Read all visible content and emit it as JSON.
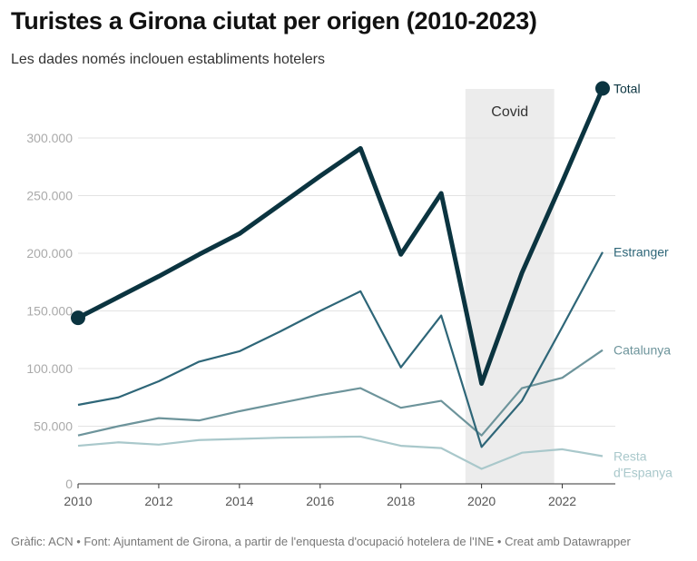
{
  "title": "Turistes a Girona ciutat per origen (2010-2023)",
  "subtitle": "Les dades només inclouen establiments hotelers",
  "footer": "Gràfic: ACN • Font: Ajuntament de Girona, a partir de l'enquesta d'ocupació hotelera de l'INE • Creat amb Datawrapper",
  "chart_data": {
    "type": "line",
    "x": [
      2010,
      2011,
      2012,
      2013,
      2014,
      2015,
      2016,
      2017,
      2018,
      2019,
      2020,
      2021,
      2022,
      2023
    ],
    "xlim": [
      2010,
      2023
    ],
    "ylim": [
      0,
      340000
    ],
    "x_ticks": [
      "2010",
      "2012",
      "2014",
      "2016",
      "2018",
      "2020",
      "2022"
    ],
    "y_ticks": [
      {
        "v": 0,
        "label": "0"
      },
      {
        "v": 50000,
        "label": "50.000"
      },
      {
        "v": 100000,
        "label": "100.000"
      },
      {
        "v": 150000,
        "label": "150.000"
      },
      {
        "v": 200000,
        "label": "200.000"
      },
      {
        "v": 250000,
        "label": "250.000"
      },
      {
        "v": 300000,
        "label": "300.000"
      }
    ],
    "grid": true,
    "annotation": {
      "label": "Covid",
      "from": 2019.6,
      "to": 2021.8,
      "color": "#ececec"
    },
    "series": [
      {
        "name": "Resta d'Espanya",
        "label_lines": [
          "Resta",
          "d'Espanya"
        ],
        "color": "#a9c8cb",
        "values": [
          33000,
          36000,
          34000,
          38000,
          39000,
          40000,
          40500,
          41000,
          33000,
          31000,
          13000,
          27000,
          30000,
          24000
        ]
      },
      {
        "name": "Catalunya",
        "label_lines": [
          "Catalunya"
        ],
        "color": "#6d949b",
        "values": [
          42000,
          50000,
          57000,
          55000,
          63000,
          70000,
          77000,
          83000,
          66000,
          72000,
          42000,
          83000,
          92000,
          116000
        ]
      },
      {
        "name": "Estranger",
        "label_lines": [
          "Estranger"
        ],
        "color": "#2e6678",
        "values": [
          68500,
          75000,
          89000,
          106000,
          115000,
          132000,
          150000,
          167000,
          101000,
          146000,
          32000,
          72000,
          136000,
          201000
        ]
      },
      {
        "name": "Total",
        "label_lines": [
          "Total"
        ],
        "color": "#0b3440",
        "values": [
          144000,
          162000,
          180000,
          199000,
          217000,
          242000,
          267000,
          291000,
          199000,
          252000,
          87000,
          183000,
          262000,
          343000
        ]
      }
    ]
  }
}
